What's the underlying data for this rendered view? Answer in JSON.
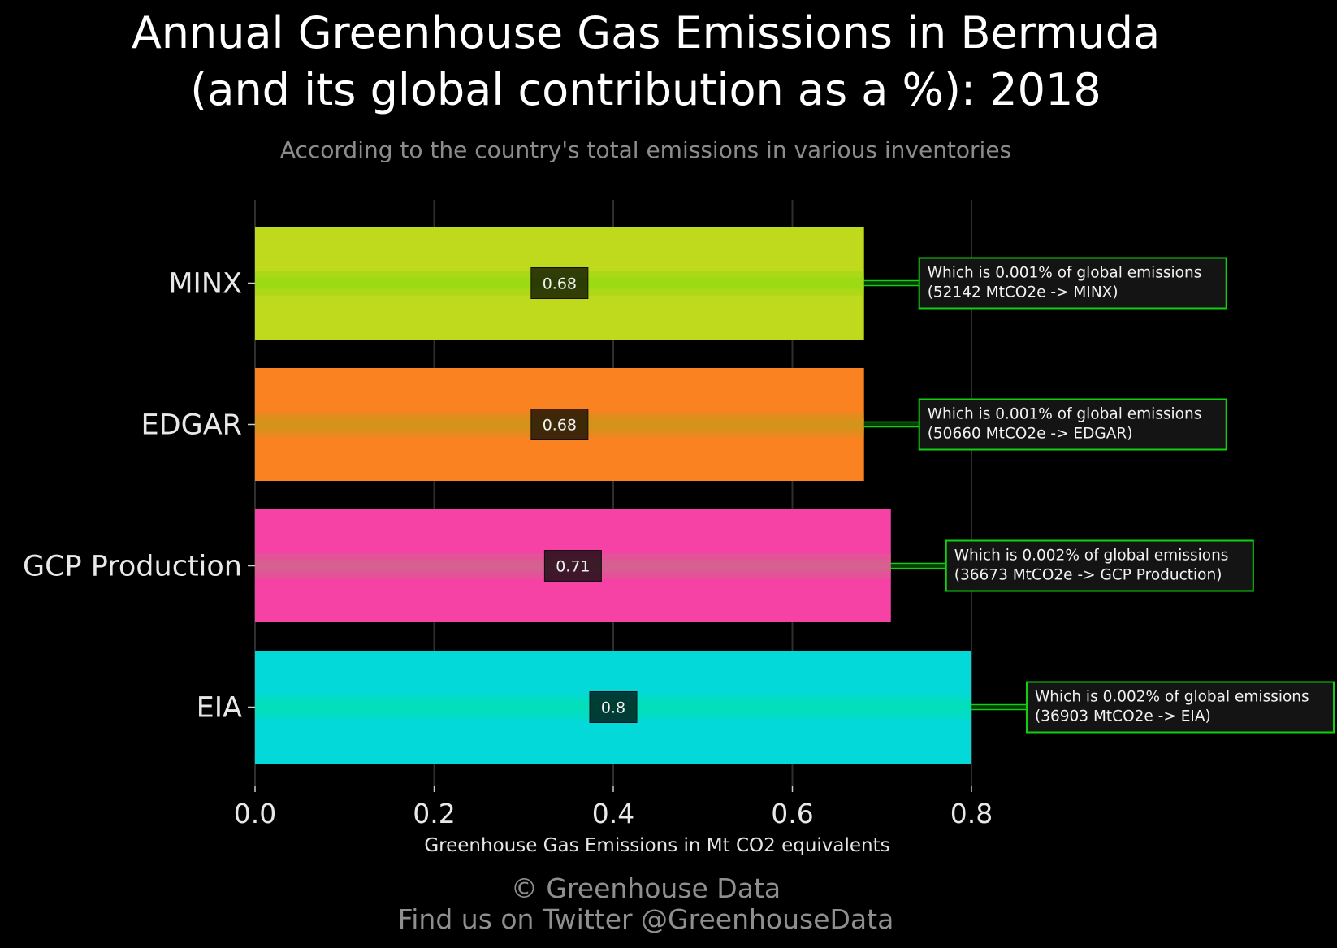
{
  "header": {
    "title_line1": "Annual Greenhouse Gas Emissions in Bermuda",
    "title_line2": "(and its global contribution as a %): 2018",
    "subtitle": "According to the country's total emissions in various inventories"
  },
  "footer": {
    "line1": "© Greenhouse Data",
    "line2": "Find us on Twitter @GreenhouseData"
  },
  "chart_data": {
    "type": "bar",
    "orientation": "horizontal",
    "categories": [
      "MINX",
      "EDGAR",
      "GCP Production",
      "EIA"
    ],
    "values": [
      0.68,
      0.68,
      0.71,
      0.8
    ],
    "value_labels": [
      "0.68",
      "0.68",
      "0.71",
      "0.8"
    ],
    "colors": [
      "#bfd91c",
      "#fa8220",
      "#f542a4",
      "#03d9d9"
    ],
    "stripe_colors": [
      "#9ad914",
      "#d4941c",
      "#d4628e",
      "#03dfb8"
    ],
    "annotations": [
      [
        "Which is 0.001% of global emissions",
        "(52142 MtCO2e -> MINX)"
      ],
      [
        "Which is 0.001% of global emissions",
        "(50660 MtCO2e -> EDGAR)"
      ],
      [
        "Which is 0.002% of global emissions",
        "(36673 MtCO2e -> GCP Production)"
      ],
      [
        "Which is 0.002% of global emissions",
        "(36903 MtCO2e -> EIA)"
      ]
    ],
    "annotation_border_color": "#10d010",
    "xlabel": "Greenhouse Gas Emissions in Mt CO2 equivalents",
    "xlim": [
      0,
      0.8
    ],
    "xticks": [
      0.0,
      0.2,
      0.4,
      0.6,
      0.8
    ],
    "xtick_labels": [
      "0.0",
      "0.2",
      "0.4",
      "0.6",
      "0.8"
    ],
    "grid": true
  }
}
